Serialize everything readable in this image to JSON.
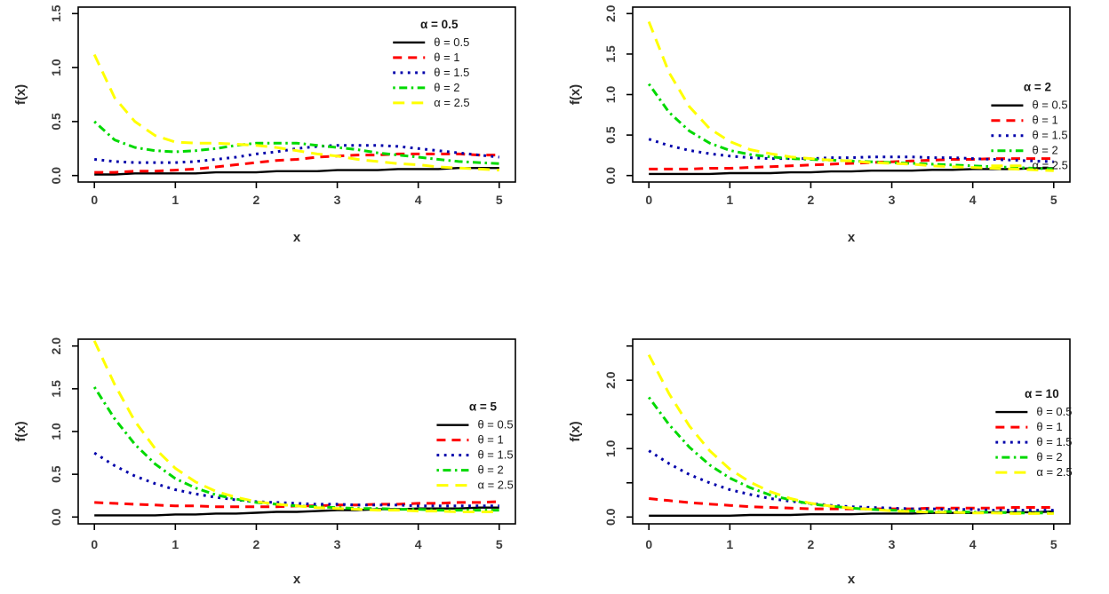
{
  "figure": {
    "background": "#ffffff",
    "description": "2x2 grid of R-style density plots f(x) vs x for different alpha values"
  },
  "chart_data": [
    {
      "type": "line",
      "legend_title": "α = 0.5",
      "xlabel": "x",
      "ylabel": "f(x)",
      "xlim": [
        0,
        5
      ],
      "ylim": [
        0,
        1.5
      ],
      "grid": false,
      "legend_position": "top-right-inside",
      "xticks": {
        "values": [
          0,
          1,
          2,
          3,
          4,
          5
        ],
        "labels": [
          "0",
          "1",
          "2",
          "3",
          "4",
          "5"
        ]
      },
      "yticks": {
        "values": [
          0,
          0.5,
          1,
          1.5
        ],
        "labels": [
          "0.0",
          "0.5",
          "1.0",
          "1.5"
        ]
      },
      "x": [
        0,
        0.25,
        0.5,
        0.75,
        1,
        1.25,
        1.5,
        1.75,
        2,
        2.25,
        2.5,
        2.75,
        3,
        3.25,
        3.5,
        3.75,
        4,
        4.25,
        4.5,
        4.75,
        5
      ],
      "series": [
        {
          "name": "θ = 0.5",
          "color": "#000000",
          "linestyle": "solid",
          "values": [
            0.01,
            0.01,
            0.02,
            0.02,
            0.02,
            0.02,
            0.03,
            0.03,
            0.03,
            0.04,
            0.04,
            0.04,
            0.05,
            0.05,
            0.05,
            0.06,
            0.06,
            0.06,
            0.07,
            0.07,
            0.07
          ]
        },
        {
          "name": "θ = 1",
          "color": "#FF0000",
          "linestyle": "dashed",
          "values": [
            0.03,
            0.03,
            0.04,
            0.04,
            0.05,
            0.06,
            0.08,
            0.1,
            0.12,
            0.14,
            0.15,
            0.17,
            0.18,
            0.19,
            0.19,
            0.2,
            0.2,
            0.2,
            0.2,
            0.19,
            0.19
          ]
        },
        {
          "name": "θ = 1.5",
          "color": "#0000AA",
          "linestyle": "dotted",
          "values": [
            0.15,
            0.13,
            0.12,
            0.12,
            0.12,
            0.13,
            0.15,
            0.17,
            0.2,
            0.22,
            0.25,
            0.27,
            0.28,
            0.28,
            0.28,
            0.27,
            0.25,
            0.23,
            0.21,
            0.19,
            0.17
          ]
        },
        {
          "name": "θ = 2",
          "color": "#00D900",
          "linestyle": "dashdot",
          "values": [
            0.5,
            0.33,
            0.26,
            0.23,
            0.22,
            0.23,
            0.25,
            0.28,
            0.3,
            0.3,
            0.3,
            0.28,
            0.26,
            0.24,
            0.21,
            0.19,
            0.17,
            0.15,
            0.13,
            0.12,
            0.11
          ]
        },
        {
          "name": "α = 2.5",
          "color": "#FFFF00",
          "linestyle": "longdash",
          "values": [
            1.12,
            0.72,
            0.5,
            0.37,
            0.31,
            0.3,
            0.3,
            0.29,
            0.28,
            0.26,
            0.23,
            0.2,
            0.18,
            0.15,
            0.13,
            0.11,
            0.1,
            0.08,
            0.07,
            0.06,
            0.05
          ]
        }
      ]
    },
    {
      "type": "line",
      "legend_title": "α = 2",
      "xlabel": "x",
      "ylabel": "f(x)",
      "xlim": [
        0,
        5
      ],
      "ylim": [
        0,
        2.0
      ],
      "grid": false,
      "legend_position": "middle-right-inside",
      "xticks": {
        "values": [
          0,
          1,
          2,
          3,
          4,
          5
        ],
        "labels": [
          "0",
          "1",
          "2",
          "3",
          "4",
          "5"
        ]
      },
      "yticks": {
        "values": [
          0,
          0.5,
          1,
          1.5,
          2
        ],
        "labels": [
          "0.0",
          "0.5",
          "1.0",
          "1.5",
          "2.0"
        ]
      },
      "x": [
        0,
        0.25,
        0.5,
        0.75,
        1,
        1.25,
        1.5,
        1.75,
        2,
        2.25,
        2.5,
        2.75,
        3,
        3.25,
        3.5,
        3.75,
        4,
        4.25,
        4.5,
        4.75,
        5
      ],
      "series": [
        {
          "name": "θ = 0.5",
          "color": "#000000",
          "linestyle": "solid",
          "values": [
            0.02,
            0.02,
            0.02,
            0.02,
            0.03,
            0.03,
            0.03,
            0.04,
            0.04,
            0.05,
            0.05,
            0.06,
            0.06,
            0.06,
            0.07,
            0.07,
            0.08,
            0.08,
            0.08,
            0.09,
            0.09
          ]
        },
        {
          "name": "θ = 1",
          "color": "#FF0000",
          "linestyle": "dashed",
          "values": [
            0.08,
            0.08,
            0.08,
            0.09,
            0.09,
            0.1,
            0.11,
            0.12,
            0.13,
            0.14,
            0.15,
            0.16,
            0.17,
            0.18,
            0.19,
            0.2,
            0.2,
            0.21,
            0.21,
            0.21,
            0.21
          ]
        },
        {
          "name": "θ = 1.5",
          "color": "#0000AA",
          "linestyle": "dotted",
          "values": [
            0.45,
            0.37,
            0.31,
            0.27,
            0.24,
            0.22,
            0.21,
            0.21,
            0.21,
            0.22,
            0.22,
            0.23,
            0.23,
            0.23,
            0.22,
            0.22,
            0.21,
            0.2,
            0.19,
            0.18,
            0.17
          ]
        },
        {
          "name": "θ = 2",
          "color": "#00D900",
          "linestyle": "dashdot",
          "values": [
            1.13,
            0.78,
            0.55,
            0.4,
            0.31,
            0.26,
            0.23,
            0.21,
            0.2,
            0.19,
            0.18,
            0.17,
            0.16,
            0.15,
            0.14,
            0.13,
            0.12,
            0.11,
            0.1,
            0.09,
            0.08
          ]
        },
        {
          "name": "α = 2.5",
          "color": "#FFFF00",
          "linestyle": "longdash",
          "values": [
            1.9,
            1.27,
            0.85,
            0.58,
            0.42,
            0.32,
            0.27,
            0.23,
            0.21,
            0.19,
            0.18,
            0.16,
            0.15,
            0.14,
            0.12,
            0.11,
            0.1,
            0.09,
            0.08,
            0.07,
            0.06
          ]
        }
      ]
    },
    {
      "type": "line",
      "legend_title": "α = 5",
      "xlabel": "x",
      "ylabel": "f(x)",
      "xlim": [
        0,
        5
      ],
      "ylim": [
        0,
        2.0
      ],
      "grid": false,
      "legend_position": "middle-right-inside",
      "xticks": {
        "values": [
          0,
          1,
          2,
          3,
          4,
          5
        ],
        "labels": [
          "0",
          "1",
          "2",
          "3",
          "4",
          "5"
        ]
      },
      "yticks": {
        "values": [
          0,
          0.5,
          1,
          1.5,
          2
        ],
        "labels": [
          "0.0",
          "0.5",
          "1.0",
          "1.5",
          "2.0"
        ]
      },
      "x": [
        0,
        0.25,
        0.5,
        0.75,
        1,
        1.25,
        1.5,
        1.75,
        2,
        2.25,
        2.5,
        2.75,
        3,
        3.25,
        3.5,
        3.75,
        4,
        4.25,
        4.5,
        4.75,
        5
      ],
      "series": [
        {
          "name": "θ = 0.5",
          "color": "#000000",
          "linestyle": "solid",
          "values": [
            0.02,
            0.02,
            0.02,
            0.02,
            0.03,
            0.03,
            0.04,
            0.04,
            0.05,
            0.06,
            0.06,
            0.07,
            0.08,
            0.08,
            0.09,
            0.09,
            0.1,
            0.1,
            0.1,
            0.11,
            0.11
          ]
        },
        {
          "name": "θ = 1",
          "color": "#FF0000",
          "linestyle": "dashed",
          "values": [
            0.17,
            0.16,
            0.15,
            0.14,
            0.13,
            0.13,
            0.12,
            0.12,
            0.12,
            0.12,
            0.13,
            0.13,
            0.14,
            0.14,
            0.15,
            0.15,
            0.16,
            0.16,
            0.17,
            0.17,
            0.18
          ]
        },
        {
          "name": "θ = 1.5",
          "color": "#0000AA",
          "linestyle": "dotted",
          "values": [
            0.75,
            0.6,
            0.48,
            0.39,
            0.32,
            0.27,
            0.23,
            0.2,
            0.18,
            0.17,
            0.16,
            0.15,
            0.15,
            0.14,
            0.14,
            0.14,
            0.13,
            0.13,
            0.13,
            0.13,
            0.13
          ]
        },
        {
          "name": "θ = 2",
          "color": "#00D900",
          "linestyle": "dashdot",
          "values": [
            1.52,
            1.15,
            0.85,
            0.62,
            0.45,
            0.34,
            0.26,
            0.21,
            0.17,
            0.15,
            0.13,
            0.12,
            0.11,
            0.1,
            0.1,
            0.09,
            0.09,
            0.08,
            0.08,
            0.08,
            0.08
          ]
        },
        {
          "name": "α = 2.5",
          "color": "#FFFF00",
          "linestyle": "longdash",
          "values": [
            2.06,
            1.55,
            1.12,
            0.8,
            0.57,
            0.41,
            0.3,
            0.23,
            0.18,
            0.15,
            0.13,
            0.11,
            0.1,
            0.09,
            0.08,
            0.08,
            0.07,
            0.07,
            0.06,
            0.06,
            0.06
          ]
        }
      ]
    },
    {
      "type": "line",
      "legend_title": "α = 10",
      "xlabel": "x",
      "ylabel": "f(x)",
      "xlim": [
        0,
        2.5
      ],
      "ylim": [
        0,
        2.5
      ],
      "grid": false,
      "legend_position": "middle-right-inside",
      "xticks": {
        "values": [
          0,
          1,
          2,
          3,
          4,
          5
        ],
        "labels": [
          "0",
          "1",
          "2",
          "3",
          "4",
          "5"
        ]
      },
      "yticks": {
        "values": [
          0,
          0.5,
          1,
          1.5,
          2,
          2.5
        ],
        "labels": [
          "0.0",
          "",
          "1.0",
          "",
          "2.0",
          ""
        ]
      },
      "x": [
        0,
        0.25,
        0.5,
        0.75,
        1,
        1.25,
        1.5,
        1.75,
        2,
        2.25,
        2.5,
        2.75,
        3,
        3.25,
        3.5,
        3.75,
        4,
        4.25,
        4.5,
        4.75,
        5
      ],
      "series": [
        {
          "name": "θ = 0.5",
          "color": "#000000",
          "linestyle": "solid",
          "values": [
            0.02,
            0.02,
            0.02,
            0.02,
            0.02,
            0.03,
            0.03,
            0.03,
            0.04,
            0.04,
            0.04,
            0.05,
            0.05,
            0.05,
            0.06,
            0.06,
            0.06,
            0.07,
            0.07,
            0.07,
            0.08
          ]
        },
        {
          "name": "θ = 1",
          "color": "#FF0000",
          "linestyle": "dashed",
          "values": [
            0.27,
            0.24,
            0.21,
            0.19,
            0.17,
            0.15,
            0.14,
            0.13,
            0.12,
            0.12,
            0.12,
            0.12,
            0.12,
            0.12,
            0.13,
            0.13,
            0.13,
            0.13,
            0.14,
            0.14,
            0.14
          ]
        },
        {
          "name": "θ = 1.5",
          "color": "#0000AA",
          "linestyle": "dotted",
          "values": [
            0.97,
            0.78,
            0.62,
            0.5,
            0.4,
            0.33,
            0.27,
            0.23,
            0.2,
            0.17,
            0.15,
            0.14,
            0.13,
            0.12,
            0.12,
            0.11,
            0.11,
            0.1,
            0.1,
            0.1,
            0.1
          ]
        },
        {
          "name": "θ = 2",
          "color": "#00D900",
          "linestyle": "dashdot",
          "values": [
            1.75,
            1.35,
            1.02,
            0.76,
            0.57,
            0.43,
            0.32,
            0.25,
            0.19,
            0.16,
            0.13,
            0.11,
            0.1,
            0.09,
            0.08,
            0.08,
            0.07,
            0.07,
            0.06,
            0.06,
            0.06
          ]
        },
        {
          "name": "α = 2.5",
          "color": "#FFFF00",
          "linestyle": "longdash",
          "values": [
            2.37,
            1.8,
            1.33,
            0.97,
            0.7,
            0.51,
            0.37,
            0.27,
            0.2,
            0.16,
            0.13,
            0.11,
            0.09,
            0.08,
            0.07,
            0.07,
            0.06,
            0.06,
            0.05,
            0.05,
            0.05
          ]
        }
      ]
    }
  ]
}
